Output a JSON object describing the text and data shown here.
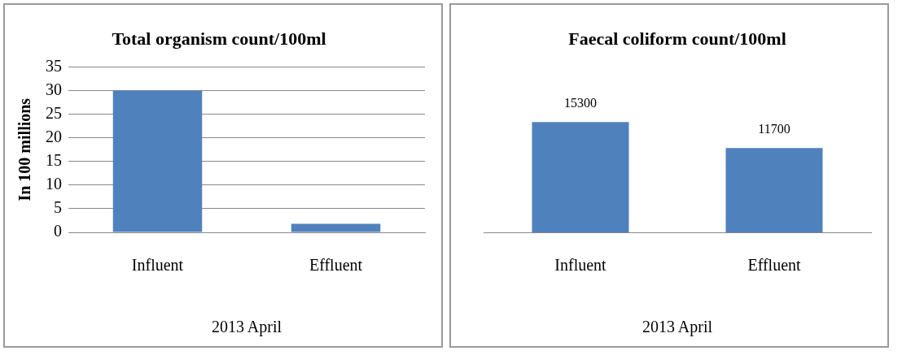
{
  "chart_data": [
    {
      "type": "bar",
      "title": "Total organism count/100ml",
      "ylabel": "In 100 millions",
      "xlabel": "2013 April",
      "categories": [
        "Influent",
        "Effluent"
      ],
      "values": [
        30,
        1.8
      ],
      "color": "#4f81bd",
      "ylim": [
        0,
        35
      ],
      "yticks": [
        0,
        5,
        10,
        15,
        20,
        25,
        30,
        35
      ],
      "grid": "y"
    },
    {
      "type": "bar",
      "title": "Faecal coliform count/100ml",
      "xlabel": "2013 April",
      "categories": [
        "Influent",
        "Effluent"
      ],
      "values": [
        15300,
        11700
      ],
      "color": "#4f81bd",
      "tick_labels": "x",
      "data_labels": true
    }
  ]
}
